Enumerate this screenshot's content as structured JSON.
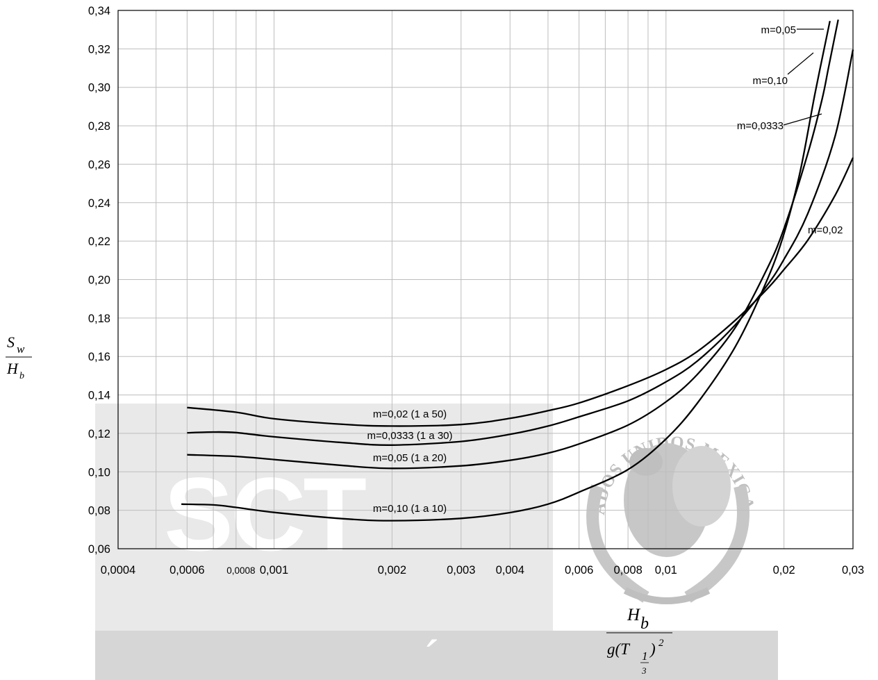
{
  "chart_data": {
    "type": "line",
    "xscale": "log",
    "xlim": [
      0.0004,
      0.03
    ],
    "ylim": [
      0.06,
      0.34
    ],
    "grid": true,
    "y_ticks": [
      "0,06",
      "0,08",
      "0,10",
      "0,12",
      "0,14",
      "0,16",
      "0,18",
      "0,20",
      "0,22",
      "0,24",
      "0,26",
      "0,28",
      "0,30",
      "0,32",
      "0,34"
    ],
    "x_ticks": [
      {
        "value": 0.0004,
        "label": "0,0004"
      },
      {
        "value": 0.0006,
        "label": "0,0006"
      },
      {
        "value": 0.0008,
        "label": "0,0008"
      },
      {
        "value": 0.001,
        "label": "0,001"
      },
      {
        "value": 0.002,
        "label": "0,002"
      },
      {
        "value": 0.003,
        "label": "0,003"
      },
      {
        "value": 0.004,
        "label": "0,004"
      },
      {
        "value": 0.006,
        "label": "0,006"
      },
      {
        "value": 0.008,
        "label": "0,008"
      },
      {
        "value": 0.01,
        "label": "0,01"
      },
      {
        "value": 0.02,
        "label": "0,02"
      },
      {
        "value": 0.03,
        "label": "0,03"
      }
    ],
    "y_axis_label": {
      "numerator": "S",
      "numerator_sub": "w",
      "denominator": "H",
      "denominator_sub": "b"
    },
    "x_axis_label": {
      "numerator": "H",
      "numerator_sub": "b",
      "denominator_prefix": "g(T",
      "denominator_sub_num": "1",
      "denominator_sub_den": "3",
      "denominator_suffix": ")",
      "denominator_sup": "2"
    },
    "series": [
      {
        "name": "m=0,02 (1 a 50)",
        "top_label": "m=0,02",
        "points": [
          [
            0.0006,
            0.1334
          ],
          [
            0.0008,
            0.131
          ],
          [
            0.001,
            0.1276
          ],
          [
            0.0015,
            0.1247
          ],
          [
            0.002,
            0.1238
          ],
          [
            0.003,
            0.1246
          ],
          [
            0.004,
            0.1278
          ],
          [
            0.005,
            0.1318
          ],
          [
            0.006,
            0.1358
          ],
          [
            0.008,
            0.1448
          ],
          [
            0.01,
            0.1532
          ],
          [
            0.012,
            0.1625
          ],
          [
            0.015,
            0.1787
          ],
          [
            0.018,
            0.1945
          ],
          [
            0.02,
            0.2052
          ],
          [
            0.023,
            0.2205
          ],
          [
            0.027,
            0.2438
          ],
          [
            0.03,
            0.2634
          ]
        ]
      },
      {
        "name": "m=0,0333 (1 a 30)",
        "top_label": "m=0,0333",
        "points": [
          [
            0.0006,
            0.1203
          ],
          [
            0.0007,
            0.1207
          ],
          [
            0.0008,
            0.1204
          ],
          [
            0.001,
            0.1182
          ],
          [
            0.0015,
            0.1152
          ],
          [
            0.002,
            0.1139
          ],
          [
            0.003,
            0.1158
          ],
          [
            0.004,
            0.1195
          ],
          [
            0.005,
            0.1238
          ],
          [
            0.006,
            0.1286
          ],
          [
            0.008,
            0.1369
          ],
          [
            0.01,
            0.1468
          ],
          [
            0.012,
            0.1575
          ],
          [
            0.015,
            0.1763
          ],
          [
            0.018,
            0.1962
          ],
          [
            0.02,
            0.2105
          ],
          [
            0.023,
            0.2343
          ],
          [
            0.027,
            0.2745
          ],
          [
            0.03,
            0.3196
          ]
        ]
      },
      {
        "name": "m=0,05 (1 a 20)",
        "top_label": "m=0,05",
        "points": [
          [
            0.0006,
            0.1089
          ],
          [
            0.0008,
            0.108
          ],
          [
            0.001,
            0.1064
          ],
          [
            0.0015,
            0.1033
          ],
          [
            0.002,
            0.1018
          ],
          [
            0.003,
            0.1031
          ],
          [
            0.004,
            0.106
          ],
          [
            0.005,
            0.1097
          ],
          [
            0.006,
            0.1145
          ],
          [
            0.008,
            0.1243
          ],
          [
            0.01,
            0.1364
          ],
          [
            0.012,
            0.1505
          ],
          [
            0.015,
            0.1748
          ],
          [
            0.018,
            0.2045
          ],
          [
            0.02,
            0.2265
          ],
          [
            0.023,
            0.2655
          ],
          [
            0.025,
            0.2935
          ],
          [
            0.026,
            0.3105
          ],
          [
            0.0275,
            0.3352
          ]
        ]
      },
      {
        "name": "m=0,10 (1 a 10)",
        "top_label": "m=0,10",
        "points": [
          [
            0.00058,
            0.0832
          ],
          [
            0.0007,
            0.0828
          ],
          [
            0.0008,
            0.0815
          ],
          [
            0.001,
            0.0789
          ],
          [
            0.0015,
            0.0756
          ],
          [
            0.002,
            0.0746
          ],
          [
            0.003,
            0.0758
          ],
          [
            0.004,
            0.0788
          ],
          [
            0.005,
            0.0832
          ],
          [
            0.006,
            0.0894
          ],
          [
            0.008,
            0.1012
          ],
          [
            0.01,
            0.1171
          ],
          [
            0.012,
            0.1355
          ],
          [
            0.015,
            0.1648
          ],
          [
            0.018,
            0.1985
          ],
          [
            0.02,
            0.2238
          ],
          [
            0.022,
            0.2562
          ],
          [
            0.024,
            0.2968
          ],
          [
            0.0262,
            0.3345
          ]
        ]
      }
    ]
  },
  "watermark": {
    "logo_text": "SCT",
    "seal_text": "ESTADOS UNIDOS MEXICANOS",
    "accent_glyph": "´"
  }
}
